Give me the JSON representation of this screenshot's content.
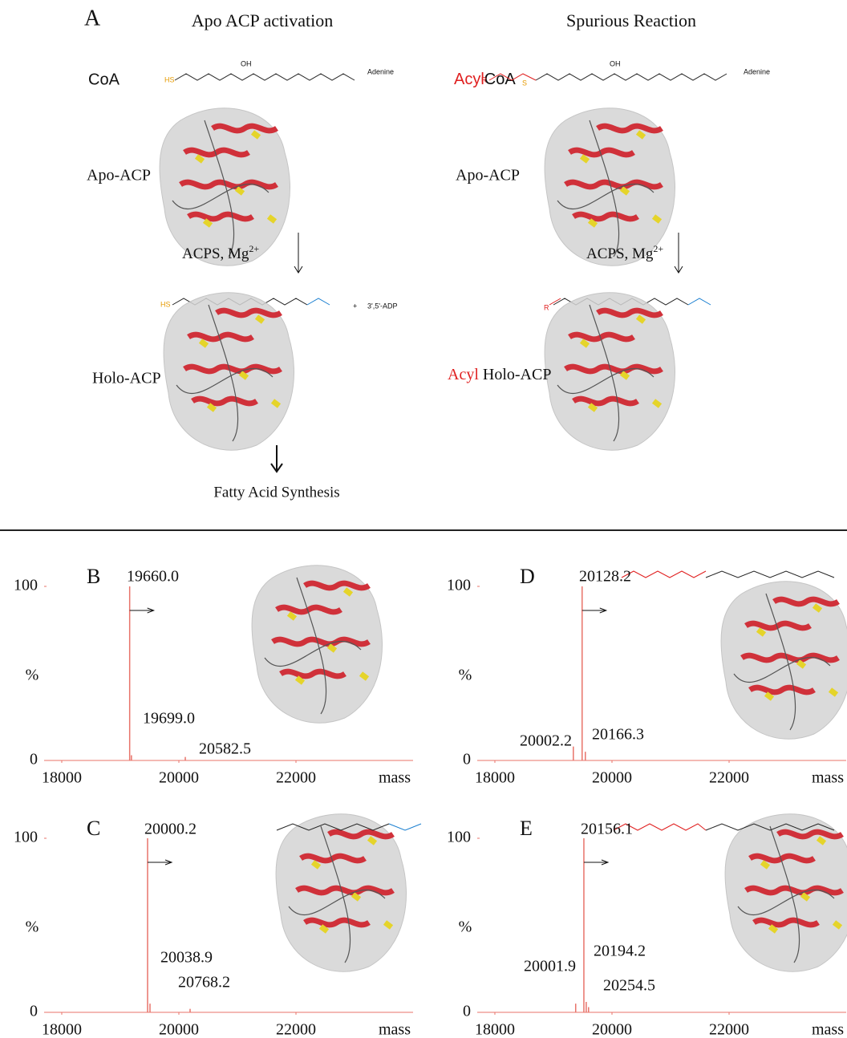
{
  "panel_a": {
    "letter": "A",
    "left_title": "Apo ACP activation",
    "right_title": "Spurious Reaction",
    "coa": "CoA",
    "acyl": "Acyl",
    "apo_acp": "Apo-ACP",
    "acps": "ACPS, Mg",
    "charge": "2+",
    "holo_acp": "Holo-ACP",
    "acyl_holo_acp": " Holo-ACP",
    "fatty_acid": "Fatty Acid Synthesis",
    "chem": {
      "hs": "HS",
      "oh": "OH",
      "adenine": "Adenine",
      "adp": "3',5'-ADP",
      "r": "R",
      "s": "S",
      "plus": "+"
    }
  },
  "chart_data": [
    {
      "type": "spectrum",
      "panel": "B",
      "x": [
        19160,
        19190,
        20110
      ],
      "values": [
        100,
        3,
        2
      ],
      "color": "#e8736a",
      "annotations": [
        "19660.0",
        "19699.0",
        "20582.5"
      ],
      "ylabel": "%",
      "xlabel": "mass",
      "xlim": [
        17740,
        24000
      ],
      "ylim": [
        0,
        100
      ],
      "xticks": [
        18000,
        20000,
        22000
      ],
      "yticks": [
        0,
        100
      ]
    },
    {
      "type": "spectrum",
      "panel": "C",
      "x": [
        19466,
        19507,
        20192
      ],
      "values": [
        100,
        5,
        2
      ],
      "color": "#e8736a",
      "annotations": [
        "20000.2",
        "20038.9",
        "20768.2"
      ],
      "ylabel": "%",
      "xlabel": "mass",
      "xlim": [
        17740,
        24000
      ],
      "ylim": [
        0,
        100
      ],
      "xticks": [
        18000,
        20000,
        22000
      ],
      "yticks": [
        0,
        100
      ]
    },
    {
      "type": "spectrum",
      "panel": "D",
      "x": [
        19490,
        19340,
        19545
      ],
      "values": [
        100,
        8,
        5
      ],
      "color": "#e8736a",
      "annotations": [
        "20128.2",
        "20002.2",
        "20166.3"
      ],
      "ylabel": "%",
      "xlabel": "mass",
      "xlim": [
        17740,
        24000
      ],
      "ylim": [
        0,
        100
      ],
      "xticks": [
        18000,
        20000,
        22000
      ],
      "yticks": [
        0,
        100
      ]
    },
    {
      "type": "spectrum",
      "panel": "E",
      "x": [
        19520,
        19560,
        19380,
        19600
      ],
      "values": [
        100,
        6,
        5,
        3
      ],
      "color": "#e8736a",
      "annotations": [
        "20156.1",
        "20194.2",
        "20001.9",
        "20254.5"
      ],
      "ylabel": "%",
      "xlabel": "mass",
      "xlim": [
        17740,
        24000
      ],
      "ylim": [
        0,
        100
      ],
      "xticks": [
        18000,
        20000,
        22000
      ],
      "yticks": [
        0,
        100
      ]
    }
  ]
}
